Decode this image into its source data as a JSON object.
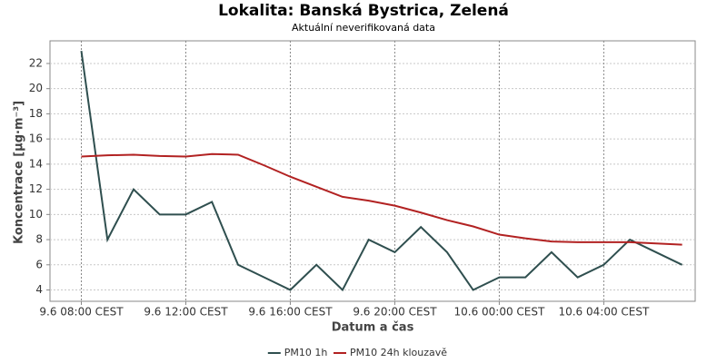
{
  "chart_data": {
    "type": "line",
    "title": "Lokalita: Banská Bystrica, Zelená",
    "subtitle": "Aktuální neverifikovaná data",
    "xlabel": "Datum a čas",
    "ylabel": "Koncentrace [µg·m⁻³]",
    "x": [
      0,
      1,
      2,
      3,
      4,
      5,
      6,
      7,
      8,
      9,
      10,
      11,
      12,
      13,
      14,
      15,
      16,
      17,
      18,
      19,
      20,
      21,
      22,
      23
    ],
    "series": [
      {
        "name": "PM10 1h",
        "color": "#2f4f4f",
        "values": [
          23,
          8,
          12,
          10,
          10,
          11,
          6,
          5,
          4,
          6,
          4,
          8,
          7,
          9,
          7,
          4,
          5,
          5,
          7,
          5,
          6,
          8,
          7,
          6
        ]
      },
      {
        "name": "PM10 24h klouzavě",
        "color": "#b22222",
        "values": [
          14.6,
          14.7,
          14.75,
          14.65,
          14.6,
          14.8,
          14.75,
          13.9,
          13.0,
          12.2,
          11.4,
          11.1,
          10.7,
          10.15,
          9.55,
          9.05,
          8.4,
          8.1,
          7.85,
          7.8,
          7.8,
          7.8,
          7.7,
          7.6
        ]
      }
    ],
    "xlim": [
      -1.2,
      23.5
    ],
    "xticks": [
      {
        "value": 0,
        "label": "9.6 08:00 CEST"
      },
      {
        "value": 4,
        "label": "9.6 12:00 CEST"
      },
      {
        "value": 8,
        "label": "9.6 16:00 CEST"
      },
      {
        "value": 12,
        "label": "9.6 20:00 CEST"
      },
      {
        "value": 16,
        "label": "10.6 00:00 CEST"
      },
      {
        "value": 20,
        "label": "10.6 04:00 CEST"
      }
    ],
    "ylim": [
      3.1,
      23.8
    ],
    "yticks": [
      4,
      6,
      8,
      10,
      12,
      14,
      16,
      18,
      20,
      22
    ],
    "grid": true,
    "legend": "bottom"
  }
}
